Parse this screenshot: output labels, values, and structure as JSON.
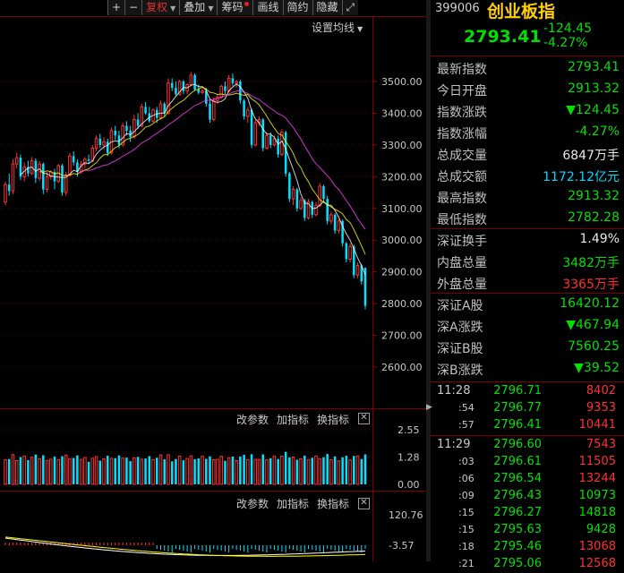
{
  "toolbar": {
    "plus": "+",
    "minus": "−",
    "fuquan": "复权",
    "diejia": "叠加",
    "chouma": "筹码",
    "huaxian": "画线",
    "jianyue": "简约",
    "yincang": "隐藏",
    "expand": "⤢"
  },
  "main_chart": {
    "setting_label": "设置均线",
    "y_ticks": [
      "3500.00",
      "3400.00",
      "3300.00",
      "3200.00",
      "3100.00",
      "3000.00",
      "2900.00",
      "2800.00",
      "2700.00",
      "2600.00"
    ]
  },
  "volume_panel": {
    "btn_params": "改参数",
    "btn_add": "加指标",
    "btn_switch": "换指标",
    "close": "✕",
    "y_ticks": [
      "2.55",
      "1.28",
      "0.00"
    ]
  },
  "macd_panel": {
    "btn_params": "改参数",
    "btn_add": "加指标",
    "btn_switch": "换指标",
    "close": "✕",
    "y_ticks": [
      "120.76",
      "-3.57"
    ]
  },
  "chart_data": {
    "type": "candlestick",
    "title": "",
    "ylim": [
      2560,
      3560
    ],
    "yticks": [
      3500,
      3400,
      3300,
      3200,
      3100,
      3000,
      2900,
      2800,
      2700,
      2600
    ],
    "colors": {
      "up": "#ff3030",
      "down": "#00e0ff",
      "ma5": "#ffffff",
      "ma10": "#ffff00",
      "ma20": "#ff40ff"
    },
    "candles": [
      {
        "o": 3120,
        "c": 3175,
        "h": 3185,
        "l": 3110
      },
      {
        "o": 3175,
        "c": 3155,
        "h": 3210,
        "l": 3140
      },
      {
        "o": 3155,
        "c": 3240,
        "h": 3255,
        "l": 3145
      },
      {
        "o": 3240,
        "c": 3260,
        "h": 3275,
        "l": 3225
      },
      {
        "o": 3260,
        "c": 3200,
        "h": 3270,
        "l": 3190
      },
      {
        "o": 3200,
        "c": 3230,
        "h": 3245,
        "l": 3185
      },
      {
        "o": 3230,
        "c": 3210,
        "h": 3250,
        "l": 3200
      },
      {
        "o": 3210,
        "c": 3250,
        "h": 3262,
        "l": 3205
      },
      {
        "o": 3250,
        "c": 3195,
        "h": 3258,
        "l": 3180
      },
      {
        "o": 3195,
        "c": 3240,
        "h": 3250,
        "l": 3185
      },
      {
        "o": 3240,
        "c": 3160,
        "h": 3245,
        "l": 3145
      },
      {
        "o": 3160,
        "c": 3200,
        "h": 3215,
        "l": 3150
      },
      {
        "o": 3200,
        "c": 3215,
        "h": 3220,
        "l": 3190
      },
      {
        "o": 3215,
        "c": 3185,
        "h": 3225,
        "l": 3160
      },
      {
        "o": 3185,
        "c": 3235,
        "h": 3240,
        "l": 3180
      },
      {
        "o": 3235,
        "c": 3150,
        "h": 3240,
        "l": 3140
      },
      {
        "o": 3150,
        "c": 3205,
        "h": 3215,
        "l": 3140
      },
      {
        "o": 3205,
        "c": 3265,
        "h": 3275,
        "l": 3200
      },
      {
        "o": 3265,
        "c": 3245,
        "h": 3280,
        "l": 3235
      },
      {
        "o": 3245,
        "c": 3215,
        "h": 3255,
        "l": 3200
      },
      {
        "o": 3215,
        "c": 3240,
        "h": 3250,
        "l": 3210
      },
      {
        "o": 3240,
        "c": 3255,
        "h": 3262,
        "l": 3225
      },
      {
        "o": 3255,
        "c": 3250,
        "h": 3270,
        "l": 3240
      },
      {
        "o": 3250,
        "c": 3290,
        "h": 3300,
        "l": 3245
      },
      {
        "o": 3290,
        "c": 3320,
        "h": 3330,
        "l": 3280
      },
      {
        "o": 3320,
        "c": 3300,
        "h": 3335,
        "l": 3290
      },
      {
        "o": 3300,
        "c": 3310,
        "h": 3325,
        "l": 3285
      },
      {
        "o": 3310,
        "c": 3275,
        "h": 3320,
        "l": 3265
      },
      {
        "o": 3275,
        "c": 3345,
        "h": 3355,
        "l": 3270
      },
      {
        "o": 3345,
        "c": 3330,
        "h": 3360,
        "l": 3315
      },
      {
        "o": 3330,
        "c": 3300,
        "h": 3345,
        "l": 3290
      },
      {
        "o": 3300,
        "c": 3360,
        "h": 3370,
        "l": 3295
      },
      {
        "o": 3360,
        "c": 3345,
        "h": 3375,
        "l": 3330
      },
      {
        "o": 3345,
        "c": 3325,
        "h": 3360,
        "l": 3310
      },
      {
        "o": 3325,
        "c": 3380,
        "h": 3395,
        "l": 3320
      },
      {
        "o": 3380,
        "c": 3360,
        "h": 3400,
        "l": 3350
      },
      {
        "o": 3360,
        "c": 3420,
        "h": 3430,
        "l": 3355
      },
      {
        "o": 3420,
        "c": 3400,
        "h": 3435,
        "l": 3395
      },
      {
        "o": 3400,
        "c": 3375,
        "h": 3420,
        "l": 3370
      },
      {
        "o": 3375,
        "c": 3410,
        "h": 3415,
        "l": 3370
      },
      {
        "o": 3410,
        "c": 3385,
        "h": 3420,
        "l": 3370
      },
      {
        "o": 3385,
        "c": 3430,
        "h": 3440,
        "l": 3380
      },
      {
        "o": 3430,
        "c": 3400,
        "h": 3435,
        "l": 3390
      },
      {
        "o": 3400,
        "c": 3495,
        "h": 3510,
        "l": 3395
      },
      {
        "o": 3495,
        "c": 3480,
        "h": 3510,
        "l": 3470
      },
      {
        "o": 3480,
        "c": 3460,
        "h": 3500,
        "l": 3455
      },
      {
        "o": 3460,
        "c": 3500,
        "h": 3505,
        "l": 3455
      },
      {
        "o": 3500,
        "c": 3470,
        "h": 3505,
        "l": 3460
      },
      {
        "o": 3470,
        "c": 3490,
        "h": 3495,
        "l": 3460
      },
      {
        "o": 3490,
        "c": 3520,
        "h": 3530,
        "l": 3485
      },
      {
        "o": 3520,
        "c": 3475,
        "h": 3525,
        "l": 3470
      },
      {
        "o": 3475,
        "c": 3465,
        "h": 3490,
        "l": 3460
      },
      {
        "o": 3465,
        "c": 3470,
        "h": 3480,
        "l": 3460
      },
      {
        "o": 3470,
        "c": 3430,
        "h": 3480,
        "l": 3420
      },
      {
        "o": 3430,
        "c": 3380,
        "h": 3445,
        "l": 3370
      },
      {
        "o": 3380,
        "c": 3440,
        "h": 3450,
        "l": 3375
      },
      {
        "o": 3440,
        "c": 3450,
        "h": 3460,
        "l": 3430
      },
      {
        "o": 3450,
        "c": 3485,
        "h": 3490,
        "l": 3445
      },
      {
        "o": 3485,
        "c": 3470,
        "h": 3500,
        "l": 3460
      },
      {
        "o": 3470,
        "c": 3510,
        "h": 3520,
        "l": 3465
      },
      {
        "o": 3510,
        "c": 3495,
        "h": 3525,
        "l": 3485
      },
      {
        "o": 3495,
        "c": 3500,
        "h": 3505,
        "l": 3480
      },
      {
        "o": 3500,
        "c": 3440,
        "h": 3505,
        "l": 3430
      },
      {
        "o": 3440,
        "c": 3390,
        "h": 3445,
        "l": 3380
      },
      {
        "o": 3390,
        "c": 3410,
        "h": 3420,
        "l": 3370
      },
      {
        "o": 3410,
        "c": 3300,
        "h": 3415,
        "l": 3290
      },
      {
        "o": 3300,
        "c": 3370,
        "h": 3380,
        "l": 3295
      },
      {
        "o": 3370,
        "c": 3380,
        "h": 3390,
        "l": 3360
      },
      {
        "o": 3380,
        "c": 3290,
        "h": 3385,
        "l": 3280
      },
      {
        "o": 3290,
        "c": 3330,
        "h": 3340,
        "l": 3285
      },
      {
        "o": 3330,
        "c": 3300,
        "h": 3340,
        "l": 3290
      },
      {
        "o": 3300,
        "c": 3320,
        "h": 3330,
        "l": 3295
      },
      {
        "o": 3320,
        "c": 3270,
        "h": 3330,
        "l": 3260
      },
      {
        "o": 3270,
        "c": 3340,
        "h": 3350,
        "l": 3265
      },
      {
        "o": 3340,
        "c": 3210,
        "h": 3345,
        "l": 3200
      },
      {
        "o": 3210,
        "c": 3130,
        "h": 3215,
        "l": 3120
      },
      {
        "o": 3130,
        "c": 3160,
        "h": 3170,
        "l": 3110
      },
      {
        "o": 3160,
        "c": 3100,
        "h": 3165,
        "l": 3090
      },
      {
        "o": 3100,
        "c": 3125,
        "h": 3135,
        "l": 3095
      },
      {
        "o": 3125,
        "c": 3070,
        "h": 3130,
        "l": 3060
      },
      {
        "o": 3070,
        "c": 3120,
        "h": 3130,
        "l": 3065
      },
      {
        "o": 3120,
        "c": 3080,
        "h": 3125,
        "l": 3070
      },
      {
        "o": 3080,
        "c": 3110,
        "h": 3120,
        "l": 3075
      },
      {
        "o": 3110,
        "c": 3170,
        "h": 3180,
        "l": 3105
      },
      {
        "o": 3170,
        "c": 3130,
        "h": 3175,
        "l": 3120
      },
      {
        "o": 3130,
        "c": 3060,
        "h": 3140,
        "l": 3050
      },
      {
        "o": 3060,
        "c": 3080,
        "h": 3090,
        "l": 3050
      },
      {
        "o": 3080,
        "c": 3030,
        "h": 3085,
        "l": 3020
      },
      {
        "o": 3030,
        "c": 3060,
        "h": 3065,
        "l": 3020
      },
      {
        "o": 3060,
        "c": 2990,
        "h": 3065,
        "l": 2980
      },
      {
        "o": 2990,
        "c": 2940,
        "h": 2995,
        "l": 2930
      },
      {
        "o": 2940,
        "c": 2980,
        "h": 2990,
        "l": 2930
      },
      {
        "o": 2980,
        "c": 2890,
        "h": 2985,
        "l": 2880
      },
      {
        "o": 2890,
        "c": 2920,
        "h": 2930,
        "l": 2880
      },
      {
        "o": 2920,
        "c": 2870,
        "h": 2925,
        "l": 2860
      },
      {
        "o": 2913,
        "c": 2793,
        "h": 2913,
        "l": 2782
      }
    ],
    "volume_axis": {
      "ticks": [
        2.55,
        1.28,
        0.0
      ]
    },
    "macd_axis": {
      "ticks": [
        120.76,
        -3.57
      ]
    }
  },
  "panel": {
    "code": "399006",
    "name": "创业板指",
    "price": "2793.41",
    "change": "-124.45",
    "change_pct": "-4.27%",
    "rows": [
      {
        "label": "最新指数",
        "value": "2793.41",
        "color": "green"
      },
      {
        "label": "今日开盘",
        "value": "2913.32",
        "color": "green"
      },
      {
        "label": "指数涨跌",
        "value": "▼124.45",
        "color": "green"
      },
      {
        "label": "指数涨幅",
        "value": "-4.27%",
        "color": "green"
      },
      {
        "label": "总成交量",
        "value": "6847万手",
        "color": "white"
      },
      {
        "label": "总成交额",
        "value": "1172.12亿元",
        "color": "cyan"
      },
      {
        "label": "最高指数",
        "value": "2913.32",
        "color": "green"
      },
      {
        "label": "最低指数",
        "value": "2782.28",
        "color": "green"
      },
      {
        "label": "深证换手",
        "value": "1.49%",
        "color": "white"
      },
      {
        "label": "内盘总量",
        "value": "3482万手",
        "color": "green"
      },
      {
        "label": "外盘总量",
        "value": "3365万手",
        "color": "red"
      },
      {
        "label": "深证A股",
        "value": "16420.12",
        "color": "green"
      },
      {
        "label": "深A涨跌",
        "value": "▼467.94",
        "color": "green"
      },
      {
        "label": "深证B股",
        "value": "7560.25",
        "color": "green"
      },
      {
        "label": "深B涨跌",
        "value": "▼39.52",
        "color": "green"
      }
    ],
    "ticks": [
      {
        "time": "11:28",
        "price": "2796.71",
        "vol": "8402",
        "color": "red"
      },
      {
        "time": ":54",
        "price": "2796.77",
        "vol": "9353",
        "color": "red"
      },
      {
        "time": ":57",
        "price": "2796.41",
        "vol": "10441",
        "color": "red"
      },
      {
        "time": "11:29",
        "price": "2796.60",
        "vol": "7543",
        "color": "red"
      },
      {
        "time": ":03",
        "price": "2796.61",
        "vol": "11505",
        "color": "red"
      },
      {
        "time": ":06",
        "price": "2796.54",
        "vol": "13244",
        "color": "red"
      },
      {
        "time": ":09",
        "price": "2796.43",
        "vol": "10973",
        "color": "green"
      },
      {
        "time": ":15",
        "price": "2796.27",
        "vol": "14818",
        "color": "green"
      },
      {
        "time": ":15",
        "price": "2795.63",
        "vol": "9428",
        "color": "green"
      },
      {
        "time": ":18",
        "price": "2795.46",
        "vol": "13068",
        "color": "red"
      },
      {
        "time": ":21",
        "price": "2795.06",
        "vol": "12568",
        "color": "red"
      }
    ]
  }
}
